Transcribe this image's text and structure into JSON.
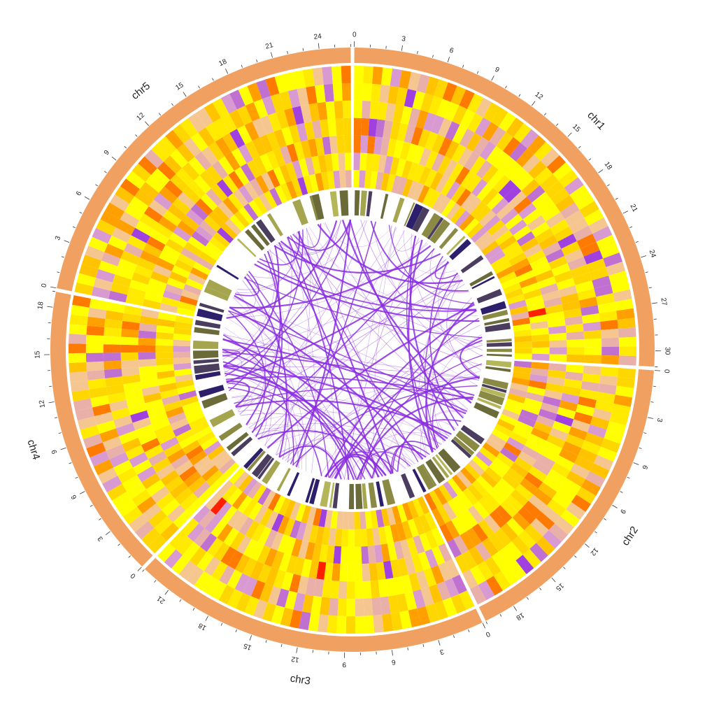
{
  "chart_data": {
    "type": "circos",
    "chromosomes": [
      {
        "name": "chr1",
        "length": 31,
        "tick_labels": [
          "0",
          "3",
          "6",
          "9",
          "12",
          "15",
          "18",
          "21",
          "24",
          "27",
          "30"
        ]
      },
      {
        "name": "chr2",
        "length": 20,
        "tick_labels": [
          "0",
          "3",
          "6",
          "9",
          "12",
          "15",
          "18"
        ]
      },
      {
        "name": "chr3",
        "length": 23,
        "tick_labels": [
          "0",
          "3",
          "6",
          "9",
          "12",
          "15",
          "18",
          "21"
        ]
      },
      {
        "name": "chr4",
        "length": 19,
        "tick_labels": [
          "0",
          "3",
          "6",
          "9",
          "12",
          "15",
          "18"
        ]
      },
      {
        "name": "chr5",
        "length": 26,
        "tick_labels": [
          "0",
          "3",
          "6",
          "9",
          "12",
          "15",
          "18",
          "21",
          "24"
        ]
      }
    ],
    "tracks": [
      {
        "kind": "ideogram",
        "color": "#f0a060"
      },
      {
        "kind": "heatmap",
        "rows": 7,
        "colors": [
          "#ffff00",
          "#ffea00",
          "#ffd700",
          "#ffc300",
          "#f5c690",
          "#e8b0a8",
          "#ff9f00",
          "#ff7a00",
          "#d89ad0",
          "#c070d0",
          "#a040e0",
          "#ff2000"
        ]
      },
      {
        "kind": "bands",
        "colors": [
          "#6b6b3a",
          "#8a8a45",
          "#a5a550",
          "#b5b55a",
          "#4a3d5e",
          "#2d1f6b"
        ]
      },
      {
        "kind": "links",
        "color": "#8a2be2",
        "count": 170
      }
    ]
  }
}
